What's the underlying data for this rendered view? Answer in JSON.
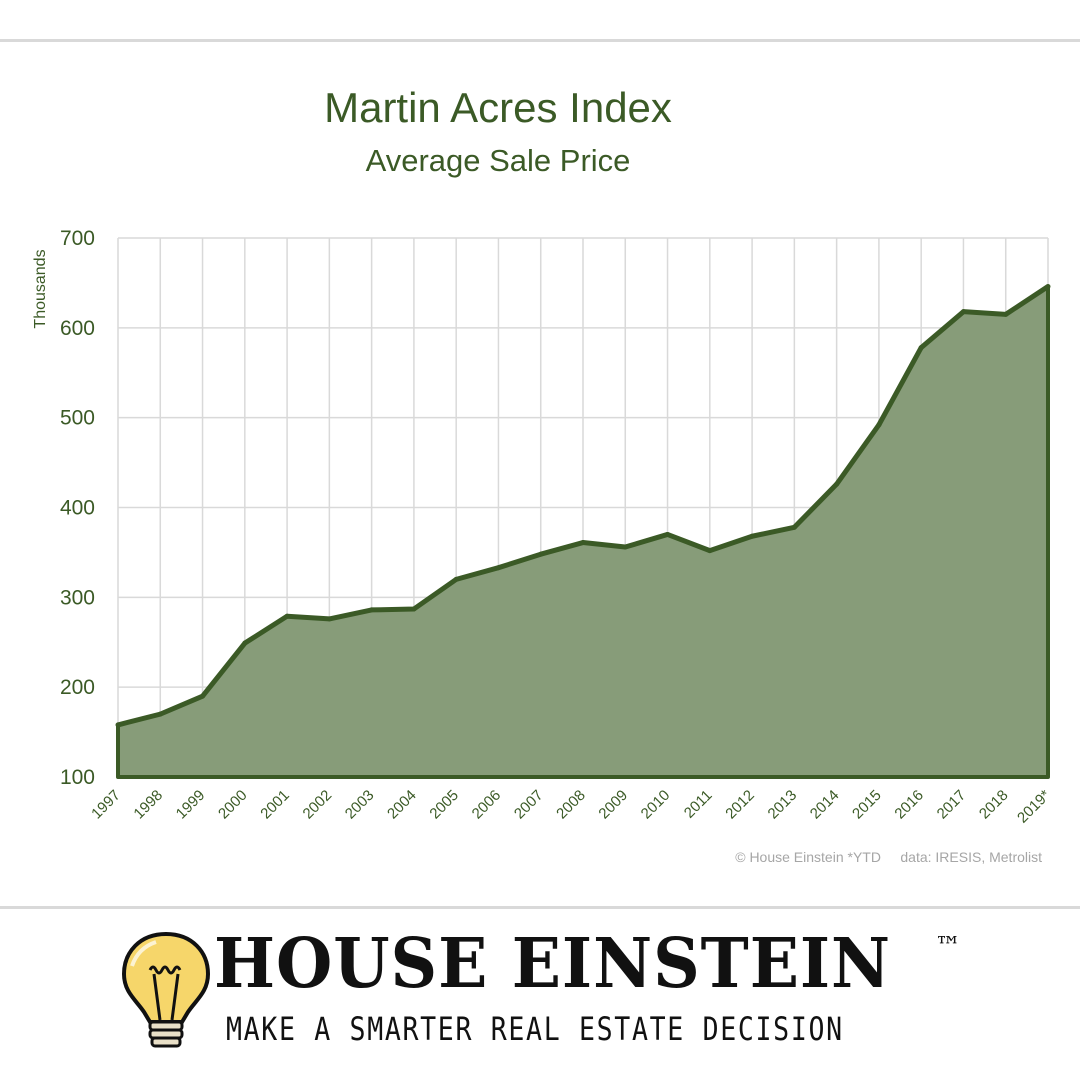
{
  "chart_data": {
    "type": "area",
    "title": "Martin Acres Index",
    "subtitle": "Average Sale Price",
    "ylabel": "Thousands",
    "xlabel": "",
    "ylim": [
      100,
      700
    ],
    "yticks": [
      100,
      200,
      300,
      400,
      500,
      600,
      700
    ],
    "grid": true,
    "categories": [
      "1997",
      "1998",
      "1999",
      "2000",
      "2001",
      "2002",
      "2003",
      "2004",
      "2005",
      "2006",
      "2007",
      "2008",
      "2009",
      "2010",
      "2011",
      "2012",
      "2013",
      "2014",
      "2015",
      "2016",
      "2017",
      "2018",
      "2019*"
    ],
    "series": [
      {
        "name": "Average Sale Price",
        "values": [
          158,
          170,
          190,
          249,
          279,
          276,
          286,
          287,
          320,
          333,
          348,
          361,
          356,
          370,
          352,
          368,
          378,
          426,
          492,
          578,
          618,
          615,
          646
        ]
      }
    ],
    "colors": {
      "line": "#3b5a26",
      "fill": "#879c79",
      "grid": "#d9d9d9",
      "label": "#3b5a26"
    }
  },
  "credit": "© House Einstein *YTD     data: IRESIS, Metrolist",
  "brand": {
    "name": "HOUSE EINSTEIN",
    "trademark": "™",
    "tagline": "MAKE A SMARTER REAL ESTATE DECISION"
  }
}
